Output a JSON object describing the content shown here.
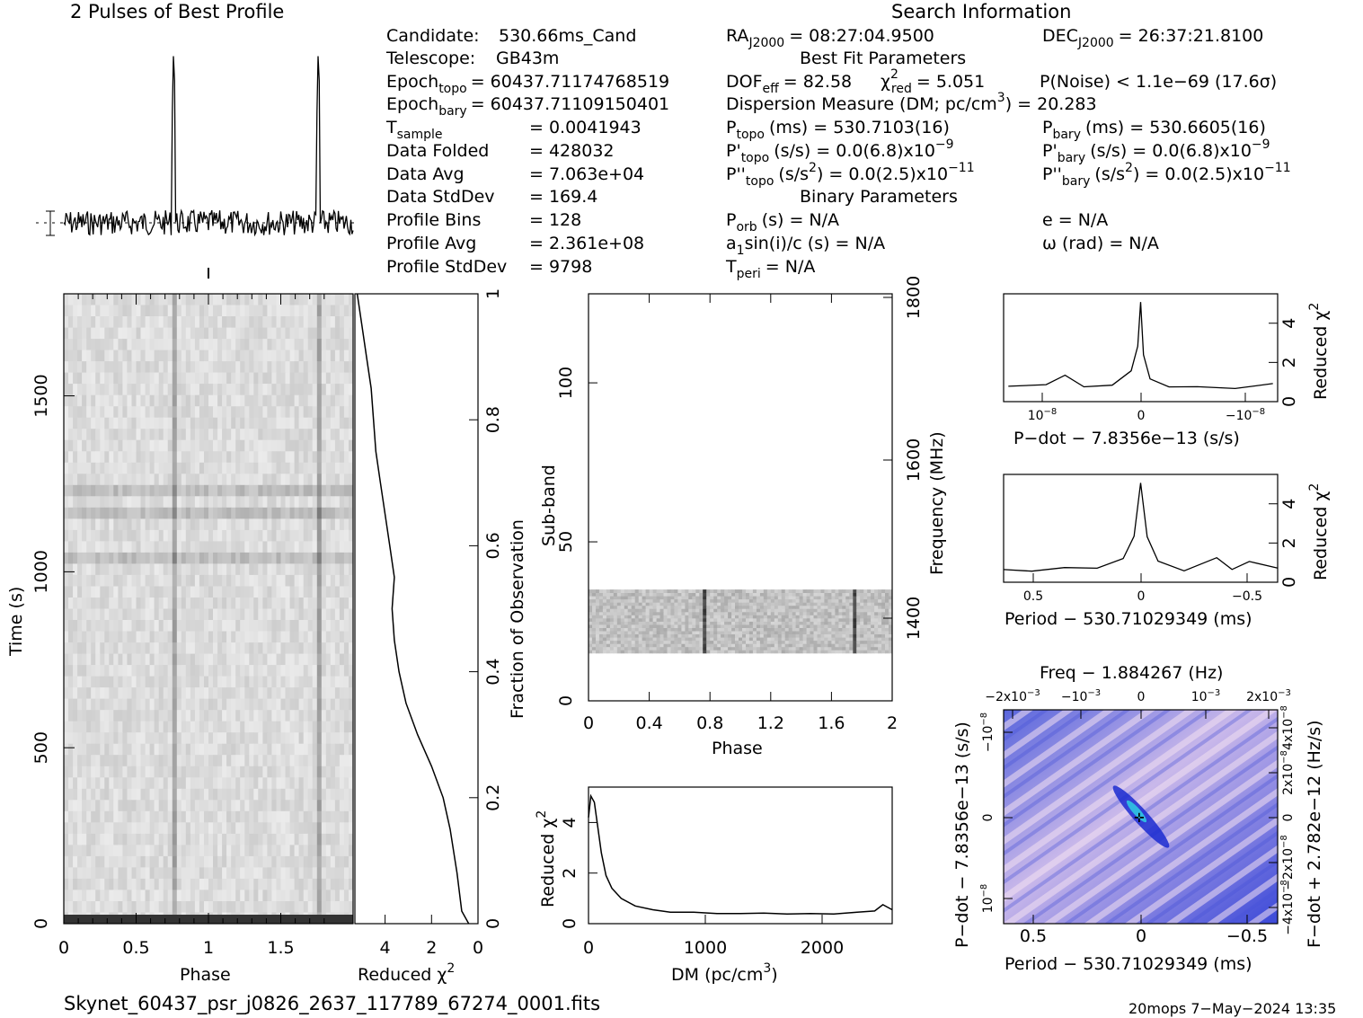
{
  "header": {
    "profile_title": "2 Pulses of Best Profile",
    "search_title": "Search Information",
    "best_fit_title": "Best Fit Parameters",
    "binary_title": "Binary Parameters"
  },
  "search_info": {
    "candidate_label": "Candidate:",
    "candidate": "530.66ms_Cand",
    "telescope_label": "Telescope:",
    "telescope": "GB43m",
    "epoch_topo_label": "Epoch",
    "epoch_topo_sub": "topo",
    "epoch_topo": "= 60437.71174768519",
    "epoch_bary_label": "Epoch",
    "epoch_bary_sub": "bary",
    "epoch_bary": "= 60437.71109150401",
    "tsample_label": "T",
    "tsample_sub": "sample",
    "tsample": "=   0.0041943",
    "data_folded_label": "Data Folded",
    "data_folded": "=   428032",
    "data_avg_label": "Data Avg",
    "data_avg": "=   7.063e+04",
    "data_std_label": "Data StdDev",
    "data_std": "=   169.4",
    "profile_bins_label": "Profile Bins",
    "profile_bins": "=   128",
    "profile_avg_label": "Profile Avg",
    "profile_avg": "=   2.361e+08",
    "profile_std_label": "Profile StdDev",
    "profile_std": "=   9798"
  },
  "fit": {
    "ra_label": "RA",
    "ra_sub": "J2000",
    "ra": "= 08:27:04.9500",
    "dec_label": "DEC",
    "dec_sub": "J2000",
    "dec": "= 26:37:21.8100",
    "dof": "DOF",
    "dof_sub": "eff",
    "dof_val": "= 82.58",
    "chi_label": "χ",
    "chi_sup": "2",
    "chi_sub": "red",
    "chi_val": "= 5.051",
    "pnoise": "P(Noise) < 1.1e−69   (17.6σ)",
    "dm_line": "Dispersion Measure (DM; pc/cm",
    "dm_sup": "3",
    "dm_val": ") = 20.283",
    "ptopo_label": "P",
    "ptopo_sub": "topo",
    "ptopo": "(ms) =  530.7103(16)",
    "pbary_label": "P",
    "pbary_sub": "bary",
    "pbary": "(ms) =  530.6605(16)",
    "pdtopo_label": "P'",
    "pdtopo_sub": "topo",
    "pdtopo": "(s/s) = 0.0(6.8)x10",
    "pdtopo_exp": "−9",
    "pdbary_label": "P'",
    "pdbary_sub": "bary",
    "pdbary": "(s/s) = 0.0(6.8)x10",
    "pdbary_exp": "−9",
    "pddtopo_label": "P''",
    "pddtopo_sub": "topo",
    "pddtopo": "(s/s",
    "pddtopo_sup2": "2",
    "pddtopo_rest": ") = 0.0(2.5)x10",
    "pddtopo_exp": "−11",
    "pddbary_label": "P''",
    "pddbary_sub": "bary",
    "pddbary": "(s/s",
    "pddbary_sup2": "2",
    "pddbary_rest": ") = 0.0(2.5)x10",
    "pddbary_exp": "−11",
    "porb_label": "P",
    "porb_sub": "orb",
    "porb": "(s) = N/A",
    "e": "e = N/A",
    "a1_label": "a",
    "a1_sub": "1",
    "a1": "sin(i)/c (s) = N/A",
    "omega": "ω (rad) = N/A",
    "tperi_label": "T",
    "tperi_sub": "peri",
    "tperi": "= N/A"
  },
  "footer": {
    "filename": "Skynet_60437_psr_j0826_2637_117789_67274_0001.fits",
    "stamp": "20mops   7−May−2024 13:35"
  },
  "chart_data": [
    {
      "type": "line",
      "title": "2 Pulses of Best Profile",
      "x_range": [
        0,
        2
      ],
      "peaks_at_phase": [
        0.76,
        1.76
      ],
      "profile_bins": 128
    },
    {
      "type": "heatmap",
      "name": "time-phase",
      "xlabel": "Phase",
      "ylabel": "Time (s)",
      "xlim": [
        0,
        2
      ],
      "ylim": [
        0,
        1790
      ],
      "xticks": [
        "0",
        "0.5",
        "1",
        "1.5"
      ],
      "yticks": [
        "0",
        "500",
        "1000",
        "1500"
      ],
      "pulse_phases": [
        0.76,
        1.76
      ]
    },
    {
      "type": "line",
      "name": "cumulative-chi2",
      "xlabel": "Reduced χ2",
      "ylabel": "Fraction of Observation",
      "xlim": [
        5.3,
        0
      ],
      "ylim": [
        0,
        1
      ],
      "xticks": [
        "4",
        "2",
        "0"
      ],
      "yticks": [
        "0",
        "0.2",
        "0.4",
        "0.6",
        "0.8",
        "1"
      ],
      "points": [
        [
          0.4,
          0
        ],
        [
          0.7,
          0.02
        ],
        [
          0.8,
          0.05
        ],
        [
          0.9,
          0.08
        ],
        [
          1.2,
          0.15
        ],
        [
          1.5,
          0.2
        ],
        [
          2.0,
          0.25
        ],
        [
          2.6,
          0.3
        ],
        [
          3.1,
          0.35
        ],
        [
          3.4,
          0.4
        ],
        [
          3.6,
          0.45
        ],
        [
          3.7,
          0.5
        ],
        [
          3.6,
          0.55
        ],
        [
          3.8,
          0.6
        ],
        [
          4.0,
          0.65
        ],
        [
          4.2,
          0.7
        ],
        [
          4.4,
          0.75
        ],
        [
          4.5,
          0.8
        ],
        [
          4.6,
          0.85
        ],
        [
          4.8,
          0.9
        ],
        [
          5.0,
          0.95
        ],
        [
          5.2,
          1.0
        ]
      ]
    },
    {
      "type": "heatmap",
      "name": "subband-phase",
      "xlabel": "Phase",
      "ylabel": "Sub-band",
      "ylabel2": "Frequency (MHz)",
      "xlim": [
        0,
        2
      ],
      "ylim": [
        0,
        128
      ],
      "xticks": [
        "0",
        "0.4",
        "0.8",
        "1.2",
        "1.6",
        "2"
      ],
      "yticks": [
        "0",
        "50",
        "100"
      ],
      "y2ticks": [
        "1400",
        "1600",
        "1800"
      ],
      "band_subbands": [
        15,
        35
      ],
      "pulse_phases": [
        0.76,
        1.76
      ]
    },
    {
      "type": "line",
      "name": "dm-chi2",
      "xlabel": "DM (pc/cm3)",
      "ylabel": "Reduced χ2",
      "xlim": [
        0,
        2600
      ],
      "ylim": [
        0,
        5.4
      ],
      "xticks": [
        "0",
        "1000",
        "2000"
      ],
      "yticks": [
        "0",
        "2",
        "4"
      ],
      "points": [
        [
          0,
          4.2
        ],
        [
          20,
          5.05
        ],
        [
          50,
          4.8
        ],
        [
          80,
          3.8
        ],
        [
          110,
          2.8
        ],
        [
          150,
          1.9
        ],
        [
          200,
          1.4
        ],
        [
          280,
          1.0
        ],
        [
          400,
          0.7
        ],
        [
          550,
          0.55
        ],
        [
          700,
          0.45
        ],
        [
          900,
          0.45
        ],
        [
          1100,
          0.4
        ],
        [
          1300,
          0.4
        ],
        [
          1500,
          0.42
        ],
        [
          1700,
          0.38
        ],
        [
          1900,
          0.4
        ],
        [
          2100,
          0.38
        ],
        [
          2300,
          0.45
        ],
        [
          2450,
          0.5
        ],
        [
          2520,
          0.75
        ],
        [
          2600,
          0.55
        ]
      ]
    },
    {
      "type": "line",
      "name": "pdot-chi2",
      "xlabel": "P−dot − 7.8356e−13 (s/s)",
      "ylabel": "Reduced χ2",
      "xticks": [
        "10−8",
        "0",
        "−10−8"
      ],
      "yticks": [
        "0",
        "2",
        "4"
      ],
      "ylim": [
        0,
        5.5
      ],
      "points": [
        [
          -1.4,
          0.8
        ],
        [
          -1.0,
          0.8
        ],
        [
          -0.8,
          1.3
        ],
        [
          -0.6,
          0.8
        ],
        [
          -0.3,
          0.9
        ],
        [
          -0.1,
          1.5
        ],
        [
          -0.03,
          2.8
        ],
        [
          0,
          5.1
        ],
        [
          0.03,
          2.4
        ],
        [
          0.1,
          1.2
        ],
        [
          0.3,
          0.8
        ],
        [
          0.6,
          0.75
        ],
        [
          1.0,
          0.7
        ],
        [
          1.4,
          0.85
        ]
      ]
    },
    {
      "type": "line",
      "name": "period-chi2",
      "xlabel": "Period − 530.71029349 (ms)",
      "ylabel": "Reduced χ2",
      "xticks": [
        "0.5",
        "0",
        "−0.5"
      ],
      "yticks": [
        "0",
        "2",
        "4"
      ],
      "ylim": [
        0,
        5.5
      ],
      "points": [
        [
          0.63,
          0.6
        ],
        [
          0.5,
          0.6
        ],
        [
          0.35,
          0.8
        ],
        [
          0.2,
          0.7
        ],
        [
          0.08,
          1.2
        ],
        [
          0.03,
          2.4
        ],
        [
          0,
          5.1
        ],
        [
          -0.03,
          2.3
        ],
        [
          -0.08,
          1.1
        ],
        [
          -0.2,
          0.6
        ],
        [
          -0.35,
          1.2
        ],
        [
          -0.42,
          0.7
        ],
        [
          -0.5,
          1.1
        ],
        [
          -0.63,
          0.7
        ]
      ]
    },
    {
      "type": "heatmap",
      "name": "period-pdot",
      "title": "Freq − 1.884267 (Hz)",
      "xlabel": "Period − 530.71029349 (ms)",
      "ylabel": "P−dot − 7.8356e−13 (s/s)",
      "ylabel2": "F−dot + 2.782e−12 (Hz/s)",
      "xticks": [
        "0.5",
        "0",
        "−0.5"
      ],
      "top_ticks": [
        "−2x10−3",
        "−10−3",
        "0",
        "10−3",
        "2x10−3"
      ],
      "yticks": [
        "10−8",
        "0",
        "−10−8"
      ],
      "y2ticks": [
        "−4x10−8",
        "−2x10−8",
        "0",
        "2x10−8",
        "4x10−8"
      ],
      "colors": [
        "#1a2ad0",
        "#6e7ae0",
        "#b8b8ee",
        "#f4d8ee"
      ]
    }
  ]
}
